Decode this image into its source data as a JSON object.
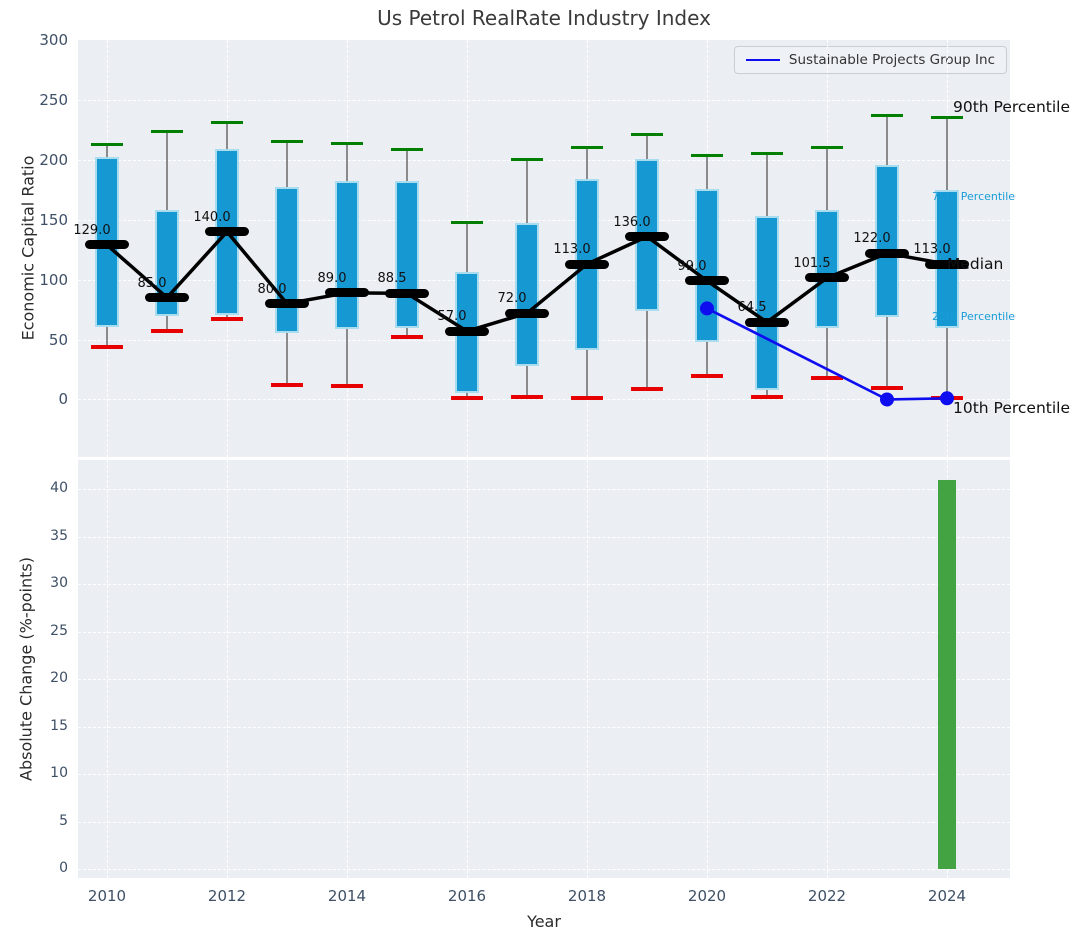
{
  "title": "Us Petrol RealRate Industry Index",
  "legend": {
    "label": "Sustainable Projects Group Inc"
  },
  "top_axis": {
    "ylabel": "Economic Capital Ratio",
    "yticks": [
      0,
      50,
      100,
      150,
      200,
      250,
      300
    ]
  },
  "bottom_axis": {
    "ylabel": "Absolute Change (%-points)",
    "xlabel": "Year",
    "yticks": [
      0,
      5,
      10,
      15,
      20,
      25,
      30,
      35,
      40
    ],
    "xticks": [
      2010,
      2012,
      2014,
      2016,
      2018,
      2020,
      2022,
      2024
    ]
  },
  "annotations": {
    "p90": "90th Percentile",
    "p75": "75th Percentile",
    "median": "Median",
    "p25": "25th Percentile",
    "p10": "10th Percentile"
  },
  "colors": {
    "box": "#1698d3",
    "box_edge": "#aadcf0",
    "p90_cap": "#007f00",
    "p10_cap": "#e60000",
    "median": "#000000",
    "company_line": "#0d0df0",
    "change_bar": "#43a343",
    "plot_bg": "#ebeef2"
  },
  "chart_data": [
    {
      "type": "boxplot+line",
      "title": "Us Petrol RealRate Industry Index",
      "ylabel": "Economic Capital Ratio",
      "ylim": [
        -48,
        300
      ],
      "grid": "white dashed",
      "legend_position": "upper right",
      "years": [
        2010,
        2011,
        2012,
        2013,
        2014,
        2015,
        2016,
        2017,
        2018,
        2019,
        2020,
        2021,
        2022,
        2023,
        2024
      ],
      "series": [
        {
          "name": "90th Percentile",
          "values": [
            213,
            224,
            231,
            215,
            214,
            209,
            148,
            200,
            210,
            221,
            204,
            205,
            210,
            237,
            235
          ]
        },
        {
          "name": "75th Percentile",
          "values": [
            202,
            158,
            209,
            177,
            182,
            182,
            106,
            147,
            184,
            201,
            176,
            153,
            158,
            196,
            175
          ]
        },
        {
          "name": "Median",
          "values": [
            129,
            85,
            140,
            80,
            89,
            88.5,
            57,
            72,
            113,
            136,
            99,
            64.5,
            101.5,
            122,
            113
          ]
        },
        {
          "name": "25th Percentile",
          "values": [
            64,
            73,
            74,
            59,
            62,
            63,
            9,
            31,
            45,
            77,
            51,
            11,
            63,
            72,
            63
          ]
        },
        {
          "name": "10th Percentile",
          "values": [
            44,
            57,
            67,
            12,
            11,
            52,
            1,
            2,
            1,
            9,
            20,
            2,
            18,
            10,
            1
          ]
        }
      ],
      "median_labels": [
        "129.0",
        "85.0",
        "140.0",
        "80.0",
        "89.0",
        "88.5",
        "57.0",
        "72.0",
        "113.0",
        "136.0",
        "99.0",
        "64.5",
        "101.5",
        "122.0",
        "113.0"
      ],
      "company": {
        "name": "Sustainable Projects Group Inc",
        "points": [
          {
            "year": 2020,
            "value": 76
          },
          {
            "year": 2023,
            "value": 0
          },
          {
            "year": 2024,
            "value": 1
          }
        ]
      }
    },
    {
      "type": "bar",
      "ylabel": "Absolute Change (%-points)",
      "xlabel": "Year",
      "ylim": [
        0,
        43
      ],
      "categories": [
        2024
      ],
      "values": [
        41
      ],
      "bar_color": "#43a343"
    }
  ]
}
